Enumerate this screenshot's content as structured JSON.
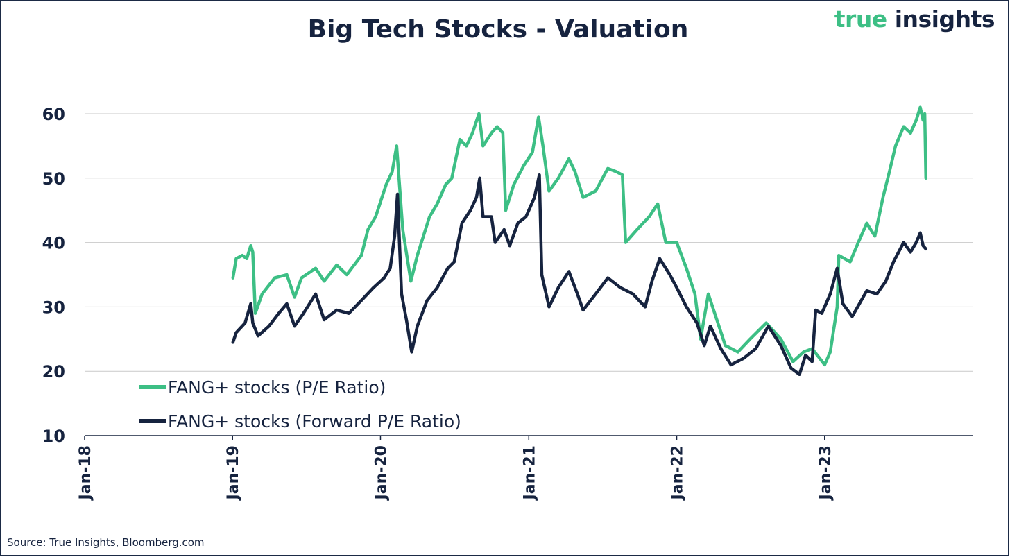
{
  "header": {
    "brand_part1": "true",
    "brand_part2": "insights"
  },
  "footer": {
    "source": "Source: True Insights, Bloomberg.com"
  },
  "chart_data": {
    "type": "line",
    "title": "Big Tech Stocks - Valuation",
    "xlabel": "",
    "ylabel": "",
    "ylim": [
      10,
      60
    ],
    "yticks": [
      10,
      20,
      30,
      40,
      50,
      60
    ],
    "xlim": [
      "2018-01-01",
      "2024-01-01"
    ],
    "xticks": [
      {
        "date": "2018-01-01",
        "label": "Jan-18"
      },
      {
        "date": "2019-01-01",
        "label": "Jan-19"
      },
      {
        "date": "2020-01-01",
        "label": "Jan-20"
      },
      {
        "date": "2021-01-01",
        "label": "Jan-21"
      },
      {
        "date": "2022-01-01",
        "label": "Jan-22"
      },
      {
        "date": "2023-01-01",
        "label": "Jan-23"
      }
    ],
    "grid": "horizontal",
    "legend_position": "bottom-left",
    "colors": {
      "pe": "#3dbf85",
      "forward_pe": "#16233f"
    },
    "series": [
      {
        "name": "FANG+ stocks (P/E Ratio)",
        "points": [
          [
            "2019-01-02",
            34.5
          ],
          [
            "2019-01-10",
            37.5
          ],
          [
            "2019-01-25",
            38
          ],
          [
            "2019-02-05",
            37.5
          ],
          [
            "2019-02-15",
            39.5
          ],
          [
            "2019-02-20",
            38.5
          ],
          [
            "2019-02-26",
            29
          ],
          [
            "2019-03-15",
            32
          ],
          [
            "2019-04-15",
            34.5
          ],
          [
            "2019-05-15",
            35
          ],
          [
            "2019-06-03",
            31.5
          ],
          [
            "2019-06-20",
            34.5
          ],
          [
            "2019-07-25",
            36
          ],
          [
            "2019-08-15",
            34
          ],
          [
            "2019-09-15",
            36.5
          ],
          [
            "2019-10-10",
            35
          ],
          [
            "2019-11-15",
            38
          ],
          [
            "2019-12-01",
            42
          ],
          [
            "2019-12-20",
            44
          ],
          [
            "2020-01-15",
            49
          ],
          [
            "2020-01-30",
            51
          ],
          [
            "2020-02-10",
            55
          ],
          [
            "2020-02-25",
            42
          ],
          [
            "2020-03-16",
            34
          ],
          [
            "2020-04-01",
            38
          ],
          [
            "2020-05-01",
            44
          ],
          [
            "2020-05-20",
            46
          ],
          [
            "2020-06-10",
            49
          ],
          [
            "2020-06-25",
            50
          ],
          [
            "2020-07-15",
            56
          ],
          [
            "2020-07-31",
            55
          ],
          [
            "2020-08-15",
            57
          ],
          [
            "2020-08-31",
            60
          ],
          [
            "2020-09-10",
            55
          ],
          [
            "2020-10-01",
            57
          ],
          [
            "2020-10-15",
            58
          ],
          [
            "2020-10-29",
            57
          ],
          [
            "2020-11-05",
            45
          ],
          [
            "2020-11-25",
            49
          ],
          [
            "2020-12-20",
            52
          ],
          [
            "2021-01-10",
            54
          ],
          [
            "2021-01-25",
            59.5
          ],
          [
            "2021-02-05",
            55
          ],
          [
            "2021-02-20",
            48
          ],
          [
            "2021-03-15",
            50
          ],
          [
            "2021-04-10",
            53
          ],
          [
            "2021-04-25",
            51
          ],
          [
            "2021-05-15",
            47
          ],
          [
            "2021-06-15",
            48
          ],
          [
            "2021-07-15",
            51.5
          ],
          [
            "2021-08-05",
            51
          ],
          [
            "2021-08-20",
            50.5
          ],
          [
            "2021-08-28",
            40
          ],
          [
            "2021-09-25",
            42
          ],
          [
            "2021-10-25",
            44
          ],
          [
            "2021-11-15",
            46
          ],
          [
            "2021-12-05",
            40
          ],
          [
            "2022-01-01",
            40
          ],
          [
            "2022-01-25",
            36
          ],
          [
            "2022-02-15",
            32
          ],
          [
            "2022-03-01",
            25
          ],
          [
            "2022-03-20",
            32
          ],
          [
            "2022-04-10",
            28
          ],
          [
            "2022-05-01",
            24
          ],
          [
            "2022-06-01",
            23
          ],
          [
            "2022-07-01",
            25
          ],
          [
            "2022-08-10",
            27.5
          ],
          [
            "2022-09-15",
            25
          ],
          [
            "2022-10-15",
            21.5
          ],
          [
            "2022-11-10",
            23
          ],
          [
            "2022-12-01",
            23.5
          ],
          [
            "2022-12-20",
            22
          ],
          [
            "2023-01-01",
            21
          ],
          [
            "2023-01-15",
            23
          ],
          [
            "2023-02-01",
            30
          ],
          [
            "2023-02-05",
            38
          ],
          [
            "2023-03-05",
            37
          ],
          [
            "2023-03-25",
            40
          ],
          [
            "2023-04-15",
            43
          ],
          [
            "2023-05-05",
            41
          ],
          [
            "2023-05-25",
            47
          ],
          [
            "2023-06-10",
            51
          ],
          [
            "2023-06-25",
            55
          ],
          [
            "2023-07-15",
            58
          ],
          [
            "2023-08-01",
            57
          ],
          [
            "2023-08-15",
            59
          ],
          [
            "2023-08-25",
            61
          ],
          [
            "2023-09-01",
            59
          ],
          [
            "2023-09-05",
            60
          ],
          [
            "2023-09-08",
            50
          ]
        ]
      },
      {
        "name": "FANG+ stocks (Forward P/E Ratio)",
        "points": [
          [
            "2019-01-02",
            24.5
          ],
          [
            "2019-01-10",
            26
          ],
          [
            "2019-02-01",
            27.5
          ],
          [
            "2019-02-15",
            30.5
          ],
          [
            "2019-02-20",
            27.5
          ],
          [
            "2019-03-05",
            25.5
          ],
          [
            "2019-04-01",
            27
          ],
          [
            "2019-04-25",
            29
          ],
          [
            "2019-05-15",
            30.5
          ],
          [
            "2019-06-03",
            27
          ],
          [
            "2019-06-25",
            29
          ],
          [
            "2019-07-25",
            32
          ],
          [
            "2019-08-15",
            28
          ],
          [
            "2019-09-15",
            29.5
          ],
          [
            "2019-10-15",
            29
          ],
          [
            "2019-11-15",
            31
          ],
          [
            "2019-12-15",
            33
          ],
          [
            "2020-01-10",
            34.5
          ],
          [
            "2020-01-25",
            36
          ],
          [
            "2020-02-05",
            41
          ],
          [
            "2020-02-12",
            47.5
          ],
          [
            "2020-02-22",
            32
          ],
          [
            "2020-03-05",
            28
          ],
          [
            "2020-03-18",
            23
          ],
          [
            "2020-04-01",
            27
          ],
          [
            "2020-04-25",
            31
          ],
          [
            "2020-05-20",
            33
          ],
          [
            "2020-06-15",
            36
          ],
          [
            "2020-07-01",
            37
          ],
          [
            "2020-07-20",
            43
          ],
          [
            "2020-08-10",
            45
          ],
          [
            "2020-08-25",
            47
          ],
          [
            "2020-09-02",
            50
          ],
          [
            "2020-09-10",
            44
          ],
          [
            "2020-10-01",
            44
          ],
          [
            "2020-10-10",
            40
          ],
          [
            "2020-11-01",
            42
          ],
          [
            "2020-11-15",
            39.5
          ],
          [
            "2020-12-05",
            43
          ],
          [
            "2020-12-25",
            44
          ],
          [
            "2021-01-15",
            47
          ],
          [
            "2021-01-27",
            50.5
          ],
          [
            "2021-02-02",
            35
          ],
          [
            "2021-02-20",
            30
          ],
          [
            "2021-03-15",
            33
          ],
          [
            "2021-04-10",
            35.5
          ],
          [
            "2021-05-01",
            32
          ],
          [
            "2021-05-15",
            29.5
          ],
          [
            "2021-06-15",
            32
          ],
          [
            "2021-07-15",
            34.5
          ],
          [
            "2021-08-15",
            33
          ],
          [
            "2021-09-15",
            32
          ],
          [
            "2021-10-15",
            30
          ],
          [
            "2021-11-01",
            34
          ],
          [
            "2021-11-20",
            37.5
          ],
          [
            "2021-12-15",
            35
          ],
          [
            "2022-01-01",
            33
          ],
          [
            "2022-01-25",
            30
          ],
          [
            "2022-02-20",
            27.5
          ],
          [
            "2022-03-10",
            24
          ],
          [
            "2022-03-25",
            27
          ],
          [
            "2022-04-20",
            23.5
          ],
          [
            "2022-05-15",
            21
          ],
          [
            "2022-06-15",
            22
          ],
          [
            "2022-07-15",
            23.5
          ],
          [
            "2022-08-15",
            27
          ],
          [
            "2022-09-15",
            24
          ],
          [
            "2022-10-10",
            20.5
          ],
          [
            "2022-10-31",
            19.5
          ],
          [
            "2022-11-15",
            22.5
          ],
          [
            "2022-12-01",
            21.5
          ],
          [
            "2022-12-10",
            29.5
          ],
          [
            "2022-12-25",
            29
          ],
          [
            "2023-01-15",
            32
          ],
          [
            "2023-02-01",
            36
          ],
          [
            "2023-02-15",
            30.5
          ],
          [
            "2023-03-10",
            28.5
          ],
          [
            "2023-04-15",
            32.5
          ],
          [
            "2023-05-10",
            32
          ],
          [
            "2023-06-01",
            34
          ],
          [
            "2023-06-20",
            37
          ],
          [
            "2023-07-15",
            40
          ],
          [
            "2023-08-01",
            38.5
          ],
          [
            "2023-08-15",
            40
          ],
          [
            "2023-08-25",
            41.5
          ],
          [
            "2023-09-01",
            39.5
          ],
          [
            "2023-09-08",
            39
          ]
        ]
      }
    ]
  }
}
